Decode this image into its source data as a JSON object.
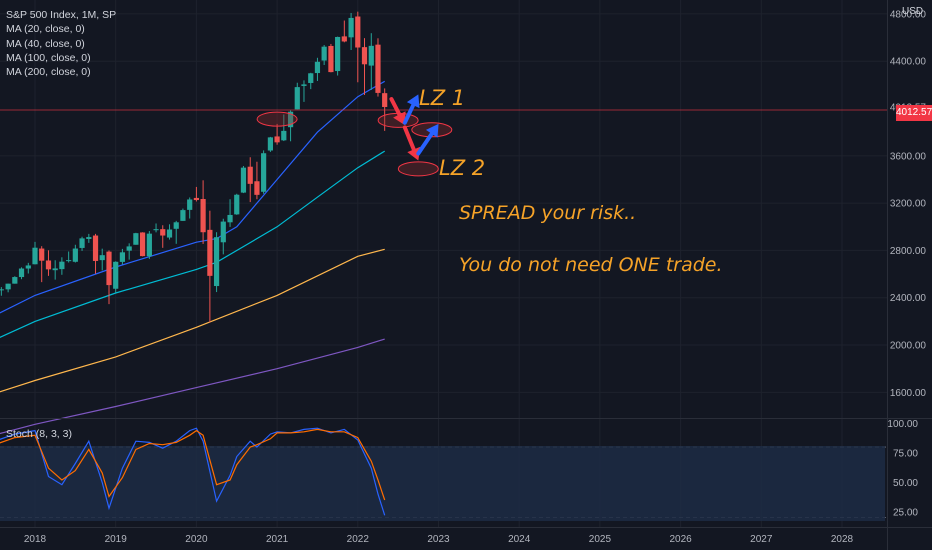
{
  "header": {
    "symbol": "S&P 500 Index, 1M, SP",
    "indicators": [
      "MA (20, close, 0)",
      "MA (40, close, 0)",
      "MA (100, close, 0)",
      "MA (200, close, 0)"
    ],
    "currency": "USD",
    "last_price": "4012.57",
    "stoch_label": "Stoch (8, 3, 3)"
  },
  "annotations": {
    "lz1": "LZ 1",
    "lz2": "LZ 2",
    "note1": "SPREAD your risk..",
    "note2": "You do not need ONE trade."
  },
  "colors": {
    "background": "#131722",
    "up": "#26a69a",
    "down": "#ef5350",
    "ma20": "#2962ff",
    "ma40": "#00bcd4",
    "ma100": "#ffb74d",
    "ma200": "#7e57c2",
    "stoch_k": "#2962ff",
    "stoch_d": "#ff6d00",
    "annotation": "#f6a328",
    "price_line": "#f23645"
  },
  "chart_data": {
    "type": "candlestick",
    "x_axis": [
      "2018",
      "2019",
      "2020",
      "2021",
      "2022",
      "2023",
      "2024",
      "2025",
      "2026",
      "2027",
      "2028"
    ],
    "y_axis": [
      "4800.00",
      "4400.00",
      "4012.57",
      "3600.00",
      "3200.00",
      "2800.00",
      "2400.00",
      "2000.00",
      "1600.00"
    ],
    "y_range": [
      1400,
      4850
    ],
    "stoch_axis": [
      "100.00",
      "75.00",
      "50.00",
      "25.00"
    ],
    "stoch_range": [
      18,
      103
    ],
    "last_price": 4012.57,
    "candles": [
      [
        2017.0,
        2239,
        2296,
        2185,
        2278
      ],
      [
        2017.083,
        2278,
        2400,
        2268,
        2363
      ],
      [
        2017.167,
        2363,
        2400,
        2322,
        2362
      ],
      [
        2017.25,
        2362,
        2398,
        2328,
        2384
      ],
      [
        2017.333,
        2384,
        2418,
        2352,
        2411
      ],
      [
        2017.417,
        2411,
        2453,
        2405,
        2423
      ],
      [
        2017.5,
        2423,
        2484,
        2407,
        2470
      ],
      [
        2017.583,
        2470,
        2490,
        2417,
        2471
      ],
      [
        2017.667,
        2471,
        2519,
        2446,
        2519
      ],
      [
        2017.75,
        2519,
        2582,
        2519,
        2575
      ],
      [
        2017.833,
        2575,
        2657,
        2557,
        2647
      ],
      [
        2017.917,
        2647,
        2695,
        2605,
        2673
      ],
      [
        2018.0,
        2683,
        2872,
        2682,
        2823
      ],
      [
        2018.083,
        2816,
        2836,
        2532,
        2713
      ],
      [
        2018.167,
        2715,
        2801,
        2585,
        2640
      ],
      [
        2018.25,
        2633,
        2717,
        2553,
        2648
      ],
      [
        2018.333,
        2642,
        2742,
        2594,
        2705
      ],
      [
        2018.417,
        2718,
        2791,
        2698,
        2718
      ],
      [
        2018.5,
        2704,
        2848,
        2698,
        2816
      ],
      [
        2018.583,
        2821,
        2916,
        2796,
        2902
      ],
      [
        2018.667,
        2897,
        2940,
        2864,
        2913
      ],
      [
        2018.75,
        2926,
        2940,
        2603,
        2711
      ],
      [
        2018.833,
        2718,
        2815,
        2631,
        2760
      ],
      [
        2018.917,
        2790,
        2800,
        2346,
        2507
      ],
      [
        2019.0,
        2476,
        2708,
        2443,
        2704
      ],
      [
        2019.083,
        2703,
        2813,
        2681,
        2784
      ],
      [
        2019.167,
        2798,
        2860,
        2722,
        2834
      ],
      [
        2019.25,
        2848,
        2949,
        2848,
        2946
      ],
      [
        2019.333,
        2952,
        2954,
        2750,
        2752
      ],
      [
        2019.417,
        2751,
        2964,
        2728,
        2942
      ],
      [
        2019.5,
        2971,
        3028,
        2953,
        2980
      ],
      [
        2019.583,
        2980,
        3013,
        2822,
        2926
      ],
      [
        2019.667,
        2909,
        3021,
        2892,
        2977
      ],
      [
        2019.75,
        2983,
        3050,
        2856,
        3038
      ],
      [
        2019.833,
        3050,
        3154,
        3050,
        3141
      ],
      [
        2019.917,
        3143,
        3248,
        3070,
        3231
      ],
      [
        2020.0,
        3244,
        3337,
        3214,
        3226
      ],
      [
        2020.083,
        3235,
        3393,
        2855,
        2954
      ],
      [
        2020.167,
        2974,
        3136,
        2192,
        2585
      ],
      [
        2020.25,
        2499,
        2954,
        2448,
        2912
      ],
      [
        2020.333,
        2869,
        3068,
        2767,
        3044
      ],
      [
        2020.417,
        3038,
        3233,
        2999,
        3100
      ],
      [
        2020.5,
        3105,
        3279,
        3101,
        3271
      ],
      [
        2020.583,
        3289,
        3514,
        3285,
        3500
      ],
      [
        2020.667,
        3508,
        3588,
        3209,
        3363
      ],
      [
        2020.75,
        3385,
        3550,
        3233,
        3270
      ],
      [
        2020.833,
        3296,
        3646,
        3279,
        3622
      ],
      [
        2020.917,
        3645,
        3760,
        3633,
        3756
      ],
      [
        2021.0,
        3764,
        3870,
        3694,
        3714
      ],
      [
        2021.083,
        3731,
        3950,
        3725,
        3811
      ],
      [
        2021.167,
        3842,
        3983,
        3723,
        3973
      ],
      [
        2021.25,
        3993,
        4218,
        3993,
        4181
      ],
      [
        2021.333,
        4191,
        4238,
        4056,
        4204
      ],
      [
        2021.417,
        4216,
        4302,
        4164,
        4298
      ],
      [
        2021.5,
        4300,
        4429,
        4233,
        4395
      ],
      [
        2021.583,
        4406,
        4537,
        4368,
        4523
      ],
      [
        2021.667,
        4529,
        4546,
        4306,
        4308
      ],
      [
        2021.75,
        4317,
        4608,
        4279,
        4605
      ],
      [
        2021.833,
        4610,
        4744,
        4560,
        4567
      ],
      [
        2021.917,
        4602,
        4808,
        4495,
        4766
      ],
      [
        2022.0,
        4778,
        4819,
        4222,
        4516
      ],
      [
        2022.083,
        4519,
        4595,
        4115,
        4374
      ],
      [
        2022.167,
        4363,
        4637,
        4157,
        4530
      ],
      [
        2022.25,
        4540,
        4594,
        4101,
        4132
      ],
      [
        2022.333,
        4130,
        4170,
        3811,
        4013
      ]
    ],
    "moving_averages": [
      {
        "name": "MA (20, close, 0)",
        "x": [
          2017.0,
          2018.0,
          2019.0,
          2020.0,
          2020.25,
          2020.5,
          2021.0,
          2021.5,
          2022.0,
          2022.333
        ],
        "y": [
          2080,
          2420,
          2660,
          2870,
          2900,
          3000,
          3400,
          3800,
          4100,
          4230
        ]
      },
      {
        "name": "MA (40, close, 0)",
        "x": [
          2017.0,
          2018.0,
          2019.0,
          2020.0,
          2020.25,
          2021.0,
          2021.5,
          2022.0,
          2022.333
        ],
        "y": [
          1890,
          2200,
          2440,
          2640,
          2700,
          3000,
          3250,
          3500,
          3640
        ]
      },
      {
        "name": "MA (100, close, 0)",
        "x": [
          2017.0,
          2018.0,
          2019.0,
          2020.0,
          2021.0,
          2022.0,
          2022.333
        ],
        "y": [
          1480,
          1700,
          1900,
          2150,
          2420,
          2750,
          2810
        ]
      },
      {
        "name": "MA (200, close, 0)",
        "x": [
          2017.0,
          2018.0,
          2019.0,
          2020.0,
          2021.0,
          2022.0,
          2022.333
        ],
        "y": [
          1150,
          1330,
          1480,
          1640,
          1800,
          1980,
          2050
        ]
      }
    ],
    "stochastic": {
      "x": [
        2017.0,
        2017.25,
        2017.5,
        2017.75,
        2018.0,
        2018.167,
        2018.333,
        2018.5,
        2018.667,
        2018.833,
        2018.917,
        2019.083,
        2019.25,
        2019.417,
        2019.583,
        2019.75,
        2019.917,
        2020.0,
        2020.083,
        2020.25,
        2020.417,
        2020.5,
        2020.667,
        2020.75,
        2020.917,
        2021.0,
        2021.167,
        2021.333,
        2021.5,
        2021.667,
        2021.833,
        2022.0,
        2022.083,
        2022.167,
        2022.25,
        2022.333
      ],
      "k": [
        74,
        80,
        85,
        91,
        94,
        55,
        48,
        66,
        85,
        50,
        28,
        62,
        85,
        84,
        79,
        85,
        94,
        96,
        85,
        34,
        56,
        72,
        85,
        80,
        91,
        93,
        92,
        95,
        96,
        92,
        95,
        86,
        74,
        62,
        40,
        22
      ],
      "d": [
        70,
        76,
        82,
        88,
        90,
        62,
        52,
        60,
        78,
        58,
        38,
        54,
        78,
        83,
        82,
        84,
        90,
        94,
        90,
        48,
        52,
        65,
        80,
        82,
        87,
        92,
        92,
        93,
        95,
        93,
        93,
        88,
        78,
        68,
        52,
        35
      ]
    },
    "stoch_levels": [
      80,
      20
    ],
    "zones": [
      {
        "x": 2021.0,
        "y": 3910
      },
      {
        "x": 2022.5,
        "y": 3900
      },
      {
        "x": 2022.917,
        "y": 3820
      },
      {
        "x": 2022.75,
        "y": 3490
      }
    ],
    "arrows": [
      {
        "dir": "down",
        "x1": 2022.417,
        "y1": 4080,
        "x2": 2022.583,
        "y2": 3860
      },
      {
        "dir": "up",
        "x1": 2022.583,
        "y1": 3880,
        "x2": 2022.75,
        "y2": 4120
      },
      {
        "dir": "down",
        "x1": 2022.583,
        "y1": 3840,
        "x2": 2022.75,
        "y2": 3560
      },
      {
        "dir": "up",
        "x1": 2022.75,
        "y1": 3620,
        "x2": 2023.0,
        "y2": 3870
      }
    ]
  }
}
